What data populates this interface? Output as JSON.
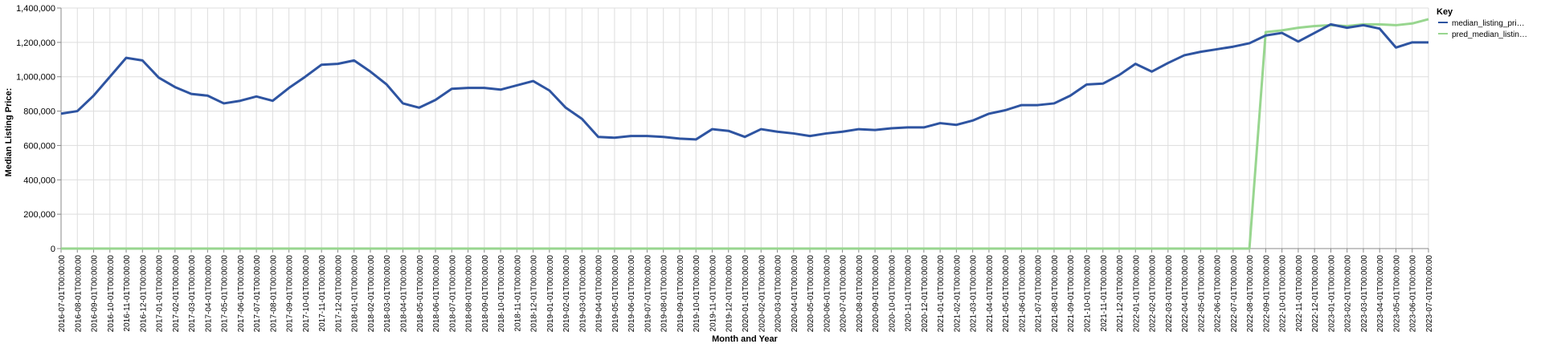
{
  "chart_data": {
    "type": "line",
    "xlabel": "Month and Year",
    "ylabel": "Median Listing Price:",
    "ylim": [
      0,
      1400000
    ],
    "y_ticks": [
      0,
      200000,
      400000,
      600000,
      800000,
      1000000,
      1200000,
      1400000
    ],
    "y_tick_labels": [
      "0",
      "200,000",
      "400,000",
      "600,000",
      "800,000",
      "1,000,000",
      "1,200,000",
      "1,400,000"
    ],
    "grid": true,
    "legend": {
      "title": "Key",
      "placement": "right"
    },
    "x": [
      "2016-07-01T00:00:00",
      "2016-08-01T00:00:00",
      "2016-09-01T00:00:00",
      "2016-10-01T00:00:00",
      "2016-11-01T00:00:00",
      "2016-12-01T00:00:00",
      "2017-01-01T00:00:00",
      "2017-02-01T00:00:00",
      "2017-03-01T00:00:00",
      "2017-04-01T00:00:00",
      "2017-05-01T00:00:00",
      "2017-06-01T00:00:00",
      "2017-07-01T00:00:00",
      "2017-08-01T00:00:00",
      "2017-09-01T00:00:00",
      "2017-10-01T00:00:00",
      "2017-11-01T00:00:00",
      "2017-12-01T00:00:00",
      "2018-01-01T00:00:00",
      "2018-02-01T00:00:00",
      "2018-03-01T00:00:00",
      "2018-04-01T00:00:00",
      "2018-05-01T00:00:00",
      "2018-06-01T00:00:00",
      "2018-07-01T00:00:00",
      "2018-08-01T00:00:00",
      "2018-09-01T00:00:00",
      "2018-10-01T00:00:00",
      "2018-11-01T00:00:00",
      "2018-12-01T00:00:00",
      "2019-01-01T00:00:00",
      "2019-02-01T00:00:00",
      "2019-03-01T00:00:00",
      "2019-04-01T00:00:00",
      "2019-05-01T00:00:00",
      "2019-06-01T00:00:00",
      "2019-07-01T00:00:00",
      "2019-08-01T00:00:00",
      "2019-09-01T00:00:00",
      "2019-10-01T00:00:00",
      "2019-11-01T00:00:00",
      "2019-12-01T00:00:00",
      "2020-01-01T00:00:00",
      "2020-02-01T00:00:00",
      "2020-03-01T00:00:00",
      "2020-04-01T00:00:00",
      "2020-05-01T00:00:00",
      "2020-06-01T00:00:00",
      "2020-07-01T00:00:00",
      "2020-08-01T00:00:00",
      "2020-09-01T00:00:00",
      "2020-10-01T00:00:00",
      "2020-11-01T00:00:00",
      "2020-12-01T00:00:00",
      "2021-01-01T00:00:00",
      "2021-02-01T00:00:00",
      "2021-03-01T00:00:00",
      "2021-04-01T00:00:00",
      "2021-05-01T00:00:00",
      "2021-06-01T00:00:00",
      "2021-07-01T00:00:00",
      "2021-08-01T00:00:00",
      "2021-09-01T00:00:00",
      "2021-10-01T00:00:00",
      "2021-11-01T00:00:00",
      "2021-12-01T00:00:00",
      "2022-01-01T00:00:00",
      "2022-02-01T00:00:00",
      "2022-03-01T00:00:00",
      "2022-04-01T00:00:00",
      "2022-05-01T00:00:00",
      "2022-06-01T00:00:00",
      "2022-07-01T00:00:00",
      "2022-08-01T00:00:00",
      "2022-09-01T00:00:00",
      "2022-10-01T00:00:00",
      "2022-11-01T00:00:00",
      "2022-12-01T00:00:00",
      "2023-01-01T00:00:00",
      "2023-02-01T00:00:00",
      "2023-03-01T00:00:00",
      "2023-04-01T00:00:00",
      "2023-05-01T00:00:00",
      "2023-06-01T00:00:00",
      "2023-07-01T00:00:00"
    ],
    "series": [
      {
        "name": "median_listing_pri…",
        "color": "#2e54a1",
        "values": [
          785000,
          800000,
          890000,
          1000000,
          1110000,
          1095000,
          995000,
          940000,
          900000,
          890000,
          845000,
          860000,
          885000,
          860000,
          935000,
          1000000,
          1070000,
          1075000,
          1095000,
          1030000,
          955000,
          845000,
          820000,
          865000,
          930000,
          935000,
          935000,
          925000,
          950000,
          975000,
          920000,
          820000,
          755000,
          650000,
          645000,
          655000,
          655000,
          650000,
          640000,
          635000,
          695000,
          685000,
          650000,
          695000,
          680000,
          670000,
          655000,
          670000,
          680000,
          695000,
          690000,
          700000,
          705000,
          705000,
          730000,
          720000,
          745000,
          785000,
          805000,
          835000,
          835000,
          845000,
          890000,
          955000,
          960000,
          1010000,
          1075000,
          1030000,
          1080000,
          1125000,
          1145000,
          1160000,
          1175000,
          1195000,
          1240000,
          1255000,
          1205000,
          1255000,
          1305000,
          1285000,
          1300000,
          1280000,
          1170000,
          1200000,
          1200000
        ]
      },
      {
        "name": "pred_median_listin…",
        "color": "#98d68f",
        "values": [
          0,
          0,
          0,
          0,
          0,
          0,
          0,
          0,
          0,
          0,
          0,
          0,
          0,
          0,
          0,
          0,
          0,
          0,
          0,
          0,
          0,
          0,
          0,
          0,
          0,
          0,
          0,
          0,
          0,
          0,
          0,
          0,
          0,
          0,
          0,
          0,
          0,
          0,
          0,
          0,
          0,
          0,
          0,
          0,
          0,
          0,
          0,
          0,
          0,
          0,
          0,
          0,
          0,
          0,
          0,
          0,
          0,
          0,
          0,
          0,
          0,
          0,
          0,
          0,
          0,
          0,
          0,
          0,
          0,
          0,
          0,
          0,
          0,
          0,
          1260000,
          1270000,
          1285000,
          1295000,
          1300000,
          1295000,
          1305000,
          1305000,
          1300000,
          1310000,
          1335000
        ]
      }
    ]
  }
}
